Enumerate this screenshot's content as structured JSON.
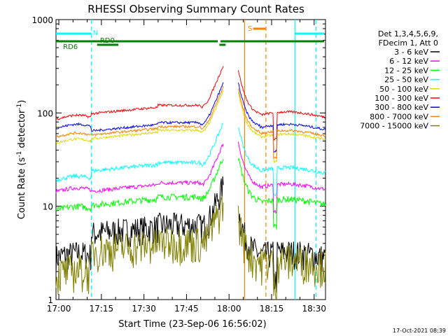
{
  "chart_data": {
    "type": "line",
    "title": "RHESSI Observing Summary Count Rates",
    "xlabel": "Start Time (23-Sep-06 16:56:02)",
    "ylabel_main": "Count Rate (s",
    "ylabel_sup1": "-1",
    "ylabel_mid": " detector",
    "ylabel_sup2": "-1",
    "ylabel_end": ")",
    "yscale": "log",
    "ylim": [
      1,
      1000
    ],
    "xlim_minutes": [
      16.0,
      95.0
    ],
    "x_ticks": [
      "17:00",
      "17:15",
      "17:30",
      "17:45",
      "18:00",
      "18:15",
      "18:30"
    ],
    "x_tick_minutes": [
      17.0,
      32.0,
      47.0,
      62.0,
      77.0,
      92.0,
      107.0
    ],
    "y_ticks": [
      "1",
      "10",
      "100",
      "1000"
    ],
    "y_tick_values": [
      1,
      10,
      100,
      1000
    ],
    "legend_header": [
      "Det 1,3,4,5,6,9,",
      "FDecim 1, Att 0"
    ],
    "series": [
      {
        "name": "3 - 6 keV",
        "color": "#000000"
      },
      {
        "name": "6 - 12 keV",
        "color": "#ff00ff"
      },
      {
        "name": "12 - 25 keV",
        "color": "#00ff00"
      },
      {
        "name": "25 - 50 keV",
        "color": "#00ffff"
      },
      {
        "name": "50 - 100 keV",
        "color": "#dcdc00"
      },
      {
        "name": "100 - 300 keV",
        "color": "#ff0000"
      },
      {
        "name": "300 - 800 keV",
        "color": "#0000ff"
      },
      {
        "name": "800 - 7000 keV",
        "color": "#ff8000"
      },
      {
        "name": "7000 - 15000 keV",
        "color": "#808000"
      }
    ],
    "flags": [
      {
        "label": "N",
        "color": "#00ffff"
      },
      {
        "label": "S",
        "color": "#ff8000"
      },
      {
        "label": "RD6",
        "color": "#008000"
      },
      {
        "label": "RD0",
        "color": "#008000"
      }
    ],
    "footer_stamp": "17-Oct-2021 08:39"
  }
}
